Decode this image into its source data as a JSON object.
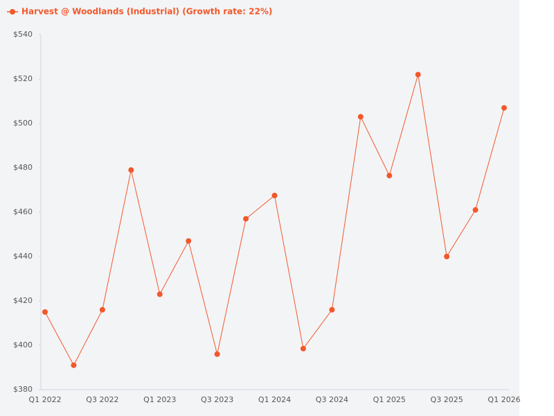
{
  "chart_data": {
    "type": "line",
    "categories": [
      "Q1 2022",
      null,
      "Q3 2022",
      null,
      "Q1 2023",
      null,
      "Q3 2023",
      null,
      "Q1 2024",
      null,
      "Q3 2024",
      null,
      "Q1 2025",
      null,
      "Q3 2025",
      null,
      "Q1 2026"
    ],
    "series": [
      {
        "name": "Harvest @ Woodlands (Industrial) (Growth rate: 22%)",
        "color": "#f1582b",
        "values": [
          415,
          391,
          416,
          479,
          423,
          447,
          396,
          457,
          467.5,
          398.5,
          416,
          503,
          476.5,
          522,
          440,
          461,
          507
        ]
      }
    ],
    "ylim": [
      380,
      540
    ],
    "yticks": [
      {
        "value": 380,
        "label": "$380"
      },
      {
        "value": 400,
        "label": "$400"
      },
      {
        "value": 420,
        "label": "$420"
      },
      {
        "value": 440,
        "label": "$440"
      },
      {
        "value": 460,
        "label": "$460"
      },
      {
        "value": 480,
        "label": "$480"
      },
      {
        "value": 500,
        "label": "$500"
      },
      {
        "value": 520,
        "label": "$520"
      },
      {
        "value": 540,
        "label": "$540"
      }
    ],
    "legend": "top-left"
  }
}
